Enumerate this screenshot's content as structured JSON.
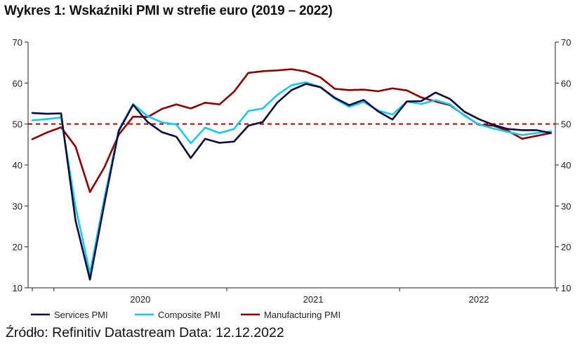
{
  "header": {
    "title": "Wykres 1: Wskaźniki PMI w strefie euro (2019 – 2022)"
  },
  "footer": {
    "source": "Źródło: Refinitiv Datastream Data: 12.12.2022"
  },
  "chart_data": {
    "type": "line",
    "title": "Wykres 1: Wskaźniki PMI w strefie euro (2019 – 2022)",
    "xlabel": "",
    "ylabel": "",
    "ylim": [
      10,
      70
    ],
    "yticks": [
      10,
      20,
      30,
      40,
      50,
      60,
      70
    ],
    "year_labels": [
      "2020",
      "2021",
      "2022"
    ],
    "x_start": "2019-11",
    "x_end": "2022-11",
    "reference_line": {
      "y": 50,
      "color": "#a00000",
      "style": "dashed"
    },
    "legend_position": "bottom",
    "grid": false,
    "x": [
      "2019-11",
      "2019-12",
      "2020-01",
      "2020-02",
      "2020-03",
      "2020-04",
      "2020-05",
      "2020-06",
      "2020-07",
      "2020-08",
      "2020-09",
      "2020-10",
      "2020-11",
      "2020-12",
      "2021-01",
      "2021-02",
      "2021-03",
      "2021-04",
      "2021-05",
      "2021-06",
      "2021-07",
      "2021-08",
      "2021-09",
      "2021-10",
      "2021-11",
      "2021-12",
      "2022-01",
      "2022-02",
      "2022-03",
      "2022-04",
      "2022-05",
      "2022-06",
      "2022-07",
      "2022-08",
      "2022-09",
      "2022-10",
      "2022-11"
    ],
    "series": [
      {
        "name": "Services PMI",
        "color": "#0a0a3c",
        "values": [
          52.7,
          52.5,
          52.6,
          26.4,
          12.0,
          30.5,
          48.3,
          54.7,
          50.5,
          48.0,
          46.9,
          41.7,
          46.4,
          45.4,
          45.7,
          49.6,
          50.5,
          55.2,
          58.3,
          59.8,
          59.0,
          56.4,
          54.6,
          55.9,
          53.1,
          51.1,
          55.5,
          55.6,
          57.7,
          56.1,
          53.0,
          51.2,
          49.8,
          48.8,
          48.5,
          48.5,
          47.8
        ]
      },
      {
        "name": "Composite PMI",
        "color": "#18c8f0",
        "values": [
          50.9,
          51.2,
          51.6,
          29.7,
          13.6,
          31.9,
          48.5,
          54.9,
          51.9,
          50.4,
          49.9,
          45.3,
          49.1,
          47.8,
          48.8,
          53.2,
          53.8,
          57.1,
          59.5,
          60.2,
          59.0,
          56.2,
          54.2,
          55.4,
          53.3,
          52.3,
          55.5,
          54.9,
          55.8,
          54.8,
          52.0,
          49.9,
          48.9,
          48.1,
          47.3,
          47.8,
          48.2
        ]
      },
      {
        "name": "Manufacturing PMI",
        "color": "#8b0000",
        "values": [
          46.3,
          47.9,
          49.2,
          44.5,
          33.4,
          39.4,
          47.4,
          51.8,
          51.7,
          53.7,
          54.8,
          53.8,
          55.2,
          54.8,
          57.9,
          62.5,
          62.9,
          63.1,
          63.4,
          62.8,
          61.4,
          58.6,
          58.3,
          58.4,
          58.0,
          58.7,
          58.2,
          56.5,
          55.5,
          54.6,
          52.1,
          49.8,
          49.6,
          48.4,
          46.4,
          47.1,
          47.8
        ]
      }
    ]
  }
}
